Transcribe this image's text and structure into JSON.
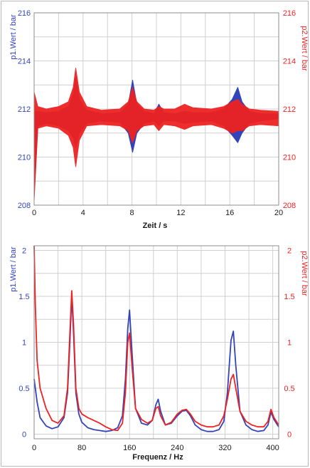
{
  "chart_data": [
    {
      "type": "line",
      "xlabel": "Zeit / s",
      "ylabel_left": "p1.Wert / bar",
      "ylabel_right": "p2.Wert / bar",
      "xlim": [
        0,
        20
      ],
      "ylim": [
        208,
        216
      ],
      "ylim_right": [
        208,
        216
      ],
      "x_ticks": [
        "0",
        "4",
        "8",
        "12",
        "16",
        "20"
      ],
      "y_ticks_left": [
        "208",
        "210",
        "212",
        "214",
        "216"
      ],
      "y_ticks_right": [
        "208",
        "210",
        "212",
        "214",
        "216"
      ],
      "grid": true,
      "colors": {
        "p1": "#3344bb",
        "p2": "#ee2222"
      },
      "series": [
        {
          "name": "p1.Wert / bar",
          "envelope": {
            "x": [
              0,
              0.3,
              1.0,
              2.0,
              2.8,
              3.2,
              3.4,
              3.7,
              4.3,
              5.5,
              7.0,
              7.7,
              8.05,
              8.4,
              9.0,
              9.8,
              10.2,
              10.6,
              11.5,
              12.3,
              13.0,
              14.5,
              15.5,
              16.2,
              16.65,
              17.0,
              17.6,
              18.5,
              20.0
            ],
            "upper": [
              211.9,
              211.9,
              211.85,
              211.9,
              212.1,
              212.6,
              213.3,
              212.4,
              211.95,
              211.8,
              211.85,
              212.2,
              213.2,
              212.2,
              211.9,
              211.8,
              212.2,
              211.85,
              211.8,
              211.9,
              211.85,
              211.85,
              212.0,
              212.4,
              212.9,
              212.3,
              211.9,
              211.8,
              211.8
            ],
            "lower": [
              208.4,
              211.3,
              211.4,
              211.3,
              211.1,
              210.8,
              210.4,
              211.0,
              211.4,
              211.5,
              211.45,
              211.0,
              210.2,
              211.0,
              211.4,
              211.5,
              211.3,
              211.5,
              211.5,
              211.4,
              211.45,
              211.5,
              211.3,
              210.9,
              210.6,
              211.0,
              211.4,
              211.5,
              211.6
            ]
          }
        },
        {
          "name": "p2.Wert / bar",
          "envelope": {
            "x": [
              0,
              0.3,
              1.0,
              2.0,
              2.8,
              3.2,
              3.4,
              3.7,
              4.3,
              5.5,
              7.0,
              7.7,
              8.05,
              8.4,
              9.0,
              9.8,
              10.2,
              10.6,
              11.5,
              12.3,
              13.0,
              14.5,
              15.5,
              16.2,
              16.65,
              17.0,
              17.6,
              18.5,
              20.0
            ],
            "upper": [
              212.7,
              212.1,
              212.0,
              212.1,
              212.3,
              212.9,
              213.7,
              212.7,
              212.1,
              211.95,
              212.0,
              212.3,
              212.9,
              212.3,
              212.0,
              211.95,
              212.1,
              212.0,
              212.0,
              212.2,
              212.05,
              212.0,
              212.1,
              212.3,
              212.4,
              212.2,
              212.0,
              211.95,
              211.9
            ],
            "lower": [
              208.2,
              211.2,
              211.3,
              211.2,
              210.9,
              210.4,
              209.6,
              210.7,
              211.3,
              211.35,
              211.3,
              211.1,
              210.6,
              211.1,
              211.3,
              211.35,
              211.1,
              211.35,
              211.3,
              211.15,
              211.3,
              211.35,
              211.2,
              211.0,
              211.1,
              211.1,
              211.3,
              211.35,
              211.3
            ]
          }
        }
      ]
    },
    {
      "type": "line",
      "xlabel": "Frequenz / Hz",
      "ylabel_left": "p1.Wert / bar",
      "ylabel_right": "p2.Wert / bar",
      "xlim": [
        0,
        410
      ],
      "ylim": [
        -0.05,
        2.05
      ],
      "ylim_right": [
        -0.05,
        2.05
      ],
      "x_ticks": [
        "0",
        "80",
        "160",
        "240",
        "320",
        "400"
      ],
      "x_tick_values": [
        0,
        80,
        160,
        240,
        320,
        400
      ],
      "y_ticks_left": [
        "0",
        "0.5",
        "1",
        "1.5",
        "2"
      ],
      "y_ticks_right": [
        "0",
        "0.5",
        "1",
        "1.5",
        "2"
      ],
      "y_tick_values": [
        0,
        0.5,
        1,
        1.5,
        2
      ],
      "grid": true,
      "colors": {
        "p1": "#3344bb",
        "p2": "#ee2222"
      },
      "series": [
        {
          "name": "p1.Wert / bar",
          "x": [
            0,
            5,
            10,
            20,
            30,
            40,
            50,
            56,
            60,
            63,
            66,
            70,
            75,
            80,
            90,
            100,
            110,
            120,
            130,
            140,
            148,
            153,
            157,
            160,
            164,
            170,
            180,
            190,
            198,
            204,
            208,
            212,
            220,
            230,
            240,
            248,
            255,
            262,
            270,
            280,
            290,
            300,
            310,
            318,
            324,
            330,
            334,
            338,
            345,
            355,
            365,
            375,
            385,
            392,
            397,
            402,
            410
          ],
          "y": [
            0.6,
            0.35,
            0.18,
            0.09,
            0.06,
            0.08,
            0.18,
            0.45,
            1.0,
            1.5,
            1.1,
            0.45,
            0.22,
            0.13,
            0.07,
            0.05,
            0.04,
            0.03,
            0.04,
            0.07,
            0.2,
            0.6,
            1.15,
            1.35,
            0.9,
            0.28,
            0.12,
            0.1,
            0.15,
            0.32,
            0.38,
            0.25,
            0.1,
            0.12,
            0.2,
            0.25,
            0.26,
            0.2,
            0.1,
            0.05,
            0.03,
            0.03,
            0.05,
            0.14,
            0.45,
            1.02,
            1.12,
            0.75,
            0.25,
            0.1,
            0.05,
            0.03,
            0.04,
            0.1,
            0.24,
            0.16,
            0.08
          ]
        },
        {
          "name": "p2.Wert / bar",
          "x": [
            0,
            2,
            5,
            10,
            20,
            30,
            40,
            50,
            56,
            60,
            63,
            66,
            70,
            75,
            80,
            90,
            100,
            110,
            120,
            130,
            140,
            148,
            153,
            157,
            160,
            164,
            170,
            180,
            190,
            198,
            204,
            208,
            212,
            220,
            230,
            240,
            248,
            255,
            262,
            270,
            280,
            290,
            300,
            310,
            318,
            324,
            330,
            334,
            338,
            345,
            355,
            365,
            375,
            385,
            392,
            397,
            402,
            410
          ],
          "y": [
            2.05,
            1.4,
            0.8,
            0.5,
            0.28,
            0.15,
            0.12,
            0.2,
            0.5,
            1.1,
            1.56,
            1.2,
            0.5,
            0.28,
            0.22,
            0.18,
            0.15,
            0.12,
            0.08,
            0.05,
            0.04,
            0.12,
            0.45,
            1.0,
            1.1,
            0.75,
            0.28,
            0.16,
            0.12,
            0.15,
            0.28,
            0.3,
            0.2,
            0.1,
            0.13,
            0.22,
            0.26,
            0.27,
            0.22,
            0.14,
            0.1,
            0.08,
            0.08,
            0.1,
            0.2,
            0.38,
            0.6,
            0.65,
            0.5,
            0.25,
            0.14,
            0.1,
            0.08,
            0.08,
            0.14,
            0.27,
            0.18,
            0.1
          ]
        }
      ]
    }
  ]
}
